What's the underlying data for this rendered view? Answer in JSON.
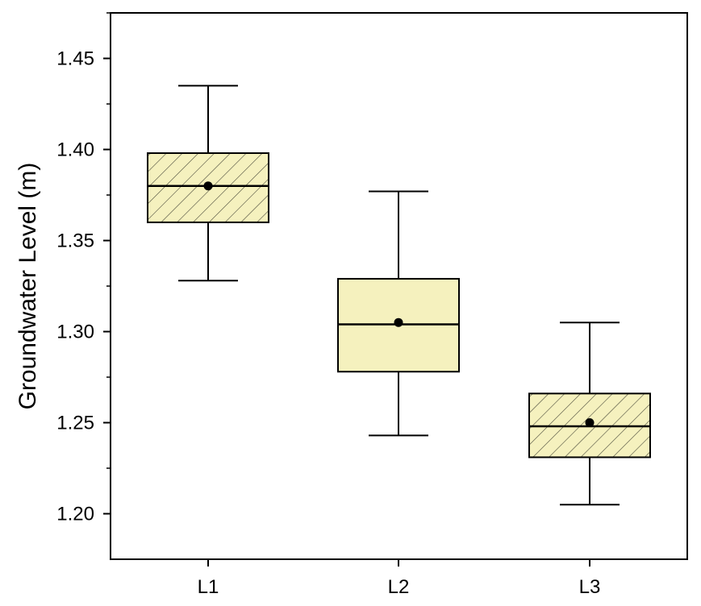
{
  "chart_data": {
    "type": "box",
    "categories": [
      "L1",
      "L2",
      "L3"
    ],
    "ylabel": "Groundwater Level (m)",
    "xlabel": "",
    "ylim": [
      1.175,
      1.475
    ],
    "yticks": [
      "1.20",
      "1.25",
      "1.30",
      "1.35",
      "1.40",
      "1.45"
    ],
    "minor_ticks": true,
    "grid": false,
    "box_fill": "#f5f1be",
    "hatch_color": "#4a4a3a",
    "boxes": [
      {
        "category": "L1",
        "whisker_low": 1.328,
        "q1": 1.36,
        "median": 1.38,
        "q3": 1.398,
        "whisker_high": 1.435,
        "mean": 1.38,
        "hatched": true
      },
      {
        "category": "L2",
        "whisker_low": 1.243,
        "q1": 1.278,
        "median": 1.304,
        "q3": 1.329,
        "whisker_high": 1.377,
        "mean": 1.305,
        "hatched": false
      },
      {
        "category": "L3",
        "whisker_low": 1.205,
        "q1": 1.231,
        "median": 1.248,
        "q3": 1.266,
        "whisker_high": 1.305,
        "mean": 1.25,
        "hatched": true
      }
    ]
  }
}
